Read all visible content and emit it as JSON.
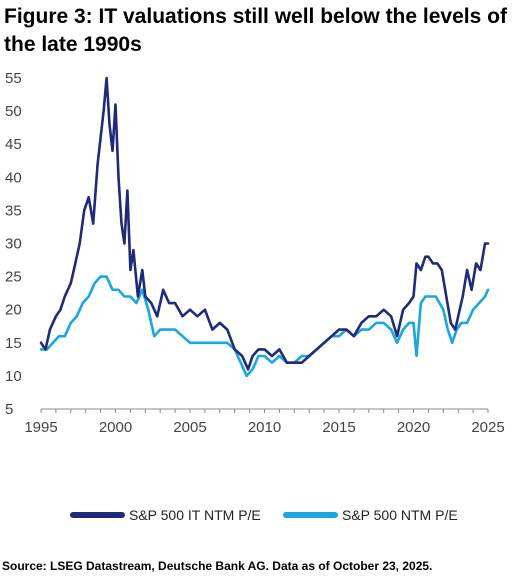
{
  "title": "Figure 3: IT valuations still well below the levels of the late 1990s",
  "source": "Source: LSEG Datastream, Deutsche Bank AG. Data as of October 23, 2025.",
  "colors": {
    "it": "#1f2a78",
    "sp": "#1aa6e0",
    "axis": "#888888",
    "text": "#444444"
  },
  "chart_data": {
    "type": "line",
    "title": "Figure 3: IT valuations still well below the levels of the late 1990s",
    "xlabel": "",
    "ylabel": "",
    "xlim": [
      1995,
      2025
    ],
    "ylim": [
      5,
      55
    ],
    "x_ticks": [
      "1995",
      "2000",
      "2005",
      "2010",
      "2015",
      "2020",
      "2025"
    ],
    "y_ticks": [
      "5",
      "10",
      "15",
      "20",
      "25",
      "30",
      "35",
      "40",
      "45",
      "50",
      "55"
    ],
    "grid": false,
    "legend_position": "bottom",
    "series": [
      {
        "name": "S&P 500 IT NTM P/E",
        "color": "#1f2a78",
        "x": [
          1995.0,
          1995.3,
          1995.6,
          1996.0,
          1996.3,
          1996.6,
          1997.0,
          1997.3,
          1997.6,
          1997.9,
          1998.2,
          1998.5,
          1998.8,
          1999.0,
          1999.2,
          1999.4,
          1999.6,
          1999.8,
          2000.0,
          2000.2,
          2000.4,
          2000.6,
          2000.8,
          2001.0,
          2001.2,
          2001.5,
          2001.8,
          2002.0,
          2002.4,
          2002.8,
          2003.2,
          2003.6,
          2004.0,
          2004.5,
          2005.0,
          2005.5,
          2006.0,
          2006.5,
          2007.0,
          2007.5,
          2008.0,
          2008.5,
          2008.9,
          2009.2,
          2009.6,
          2010.0,
          2010.5,
          2011.0,
          2011.5,
          2012.0,
          2012.5,
          2013.0,
          2013.5,
          2014.0,
          2014.5,
          2015.0,
          2015.5,
          2016.0,
          2016.5,
          2017.0,
          2017.5,
          2018.0,
          2018.5,
          2018.9,
          2019.3,
          2019.7,
          2020.0,
          2020.2,
          2020.5,
          2020.8,
          2021.0,
          2021.3,
          2021.6,
          2021.9,
          2022.2,
          2022.5,
          2022.8,
          2023.0,
          2023.3,
          2023.6,
          2023.9,
          2024.2,
          2024.5,
          2024.8,
          2025.0
        ],
        "values": [
          15,
          14,
          17,
          19,
          20,
          22,
          24,
          27,
          30,
          35,
          37,
          33,
          42,
          46,
          50,
          55,
          48,
          44,
          51,
          40,
          33,
          30,
          38,
          26,
          29,
          22,
          26,
          22,
          21,
          19,
          23,
          21,
          21,
          19,
          20,
          19,
          20,
          17,
          18,
          17,
          14,
          13,
          11,
          13,
          14,
          14,
          13,
          14,
          12,
          12,
          12,
          13,
          14,
          15,
          16,
          17,
          17,
          16,
          18,
          19,
          19,
          20,
          19,
          16,
          20,
          21,
          22,
          27,
          26,
          28,
          28,
          27,
          27,
          26,
          22,
          18,
          17,
          19,
          22,
          26,
          23,
          27,
          26,
          30,
          30
        ]
      },
      {
        "name": "S&P 500 NTM P/E",
        "color": "#1aa6e0",
        "x": [
          1995.0,
          1995.4,
          1995.8,
          1996.2,
          1996.6,
          1997.0,
          1997.4,
          1997.8,
          1998.2,
          1998.6,
          1999.0,
          1999.4,
          1999.8,
          2000.2,
          2000.6,
          2001.0,
          2001.4,
          2001.8,
          2002.2,
          2002.6,
          2003.0,
          2003.5,
          2004.0,
          2004.5,
          2005.0,
          2005.5,
          2006.0,
          2006.5,
          2007.0,
          2007.5,
          2008.0,
          2008.4,
          2008.8,
          2009.2,
          2009.6,
          2010.0,
          2010.5,
          2011.0,
          2011.5,
          2012.0,
          2012.5,
          2013.0,
          2013.5,
          2014.0,
          2014.5,
          2015.0,
          2015.5,
          2016.0,
          2016.5,
          2017.0,
          2017.5,
          2018.0,
          2018.5,
          2018.9,
          2019.3,
          2019.7,
          2020.0,
          2020.2,
          2020.5,
          2020.8,
          2021.0,
          2021.5,
          2022.0,
          2022.3,
          2022.6,
          2022.9,
          2023.2,
          2023.6,
          2024.0,
          2024.4,
          2024.8,
          2025.0
        ],
        "values": [
          14,
          14,
          15,
          16,
          16,
          18,
          19,
          21,
          22,
          24,
          25,
          25,
          23,
          23,
          22,
          22,
          21,
          23,
          20,
          16,
          17,
          17,
          17,
          16,
          15,
          15,
          15,
          15,
          15,
          15,
          14,
          12,
          10,
          11,
          13,
          13,
          12,
          13,
          12,
          12,
          13,
          13,
          14,
          15,
          16,
          16,
          17,
          16,
          17,
          17,
          18,
          18,
          17,
          15,
          17,
          18,
          18,
          13,
          21,
          22,
          22,
          22,
          20,
          17,
          15,
          17,
          18,
          18,
          20,
          21,
          22,
          23
        ]
      }
    ]
  }
}
